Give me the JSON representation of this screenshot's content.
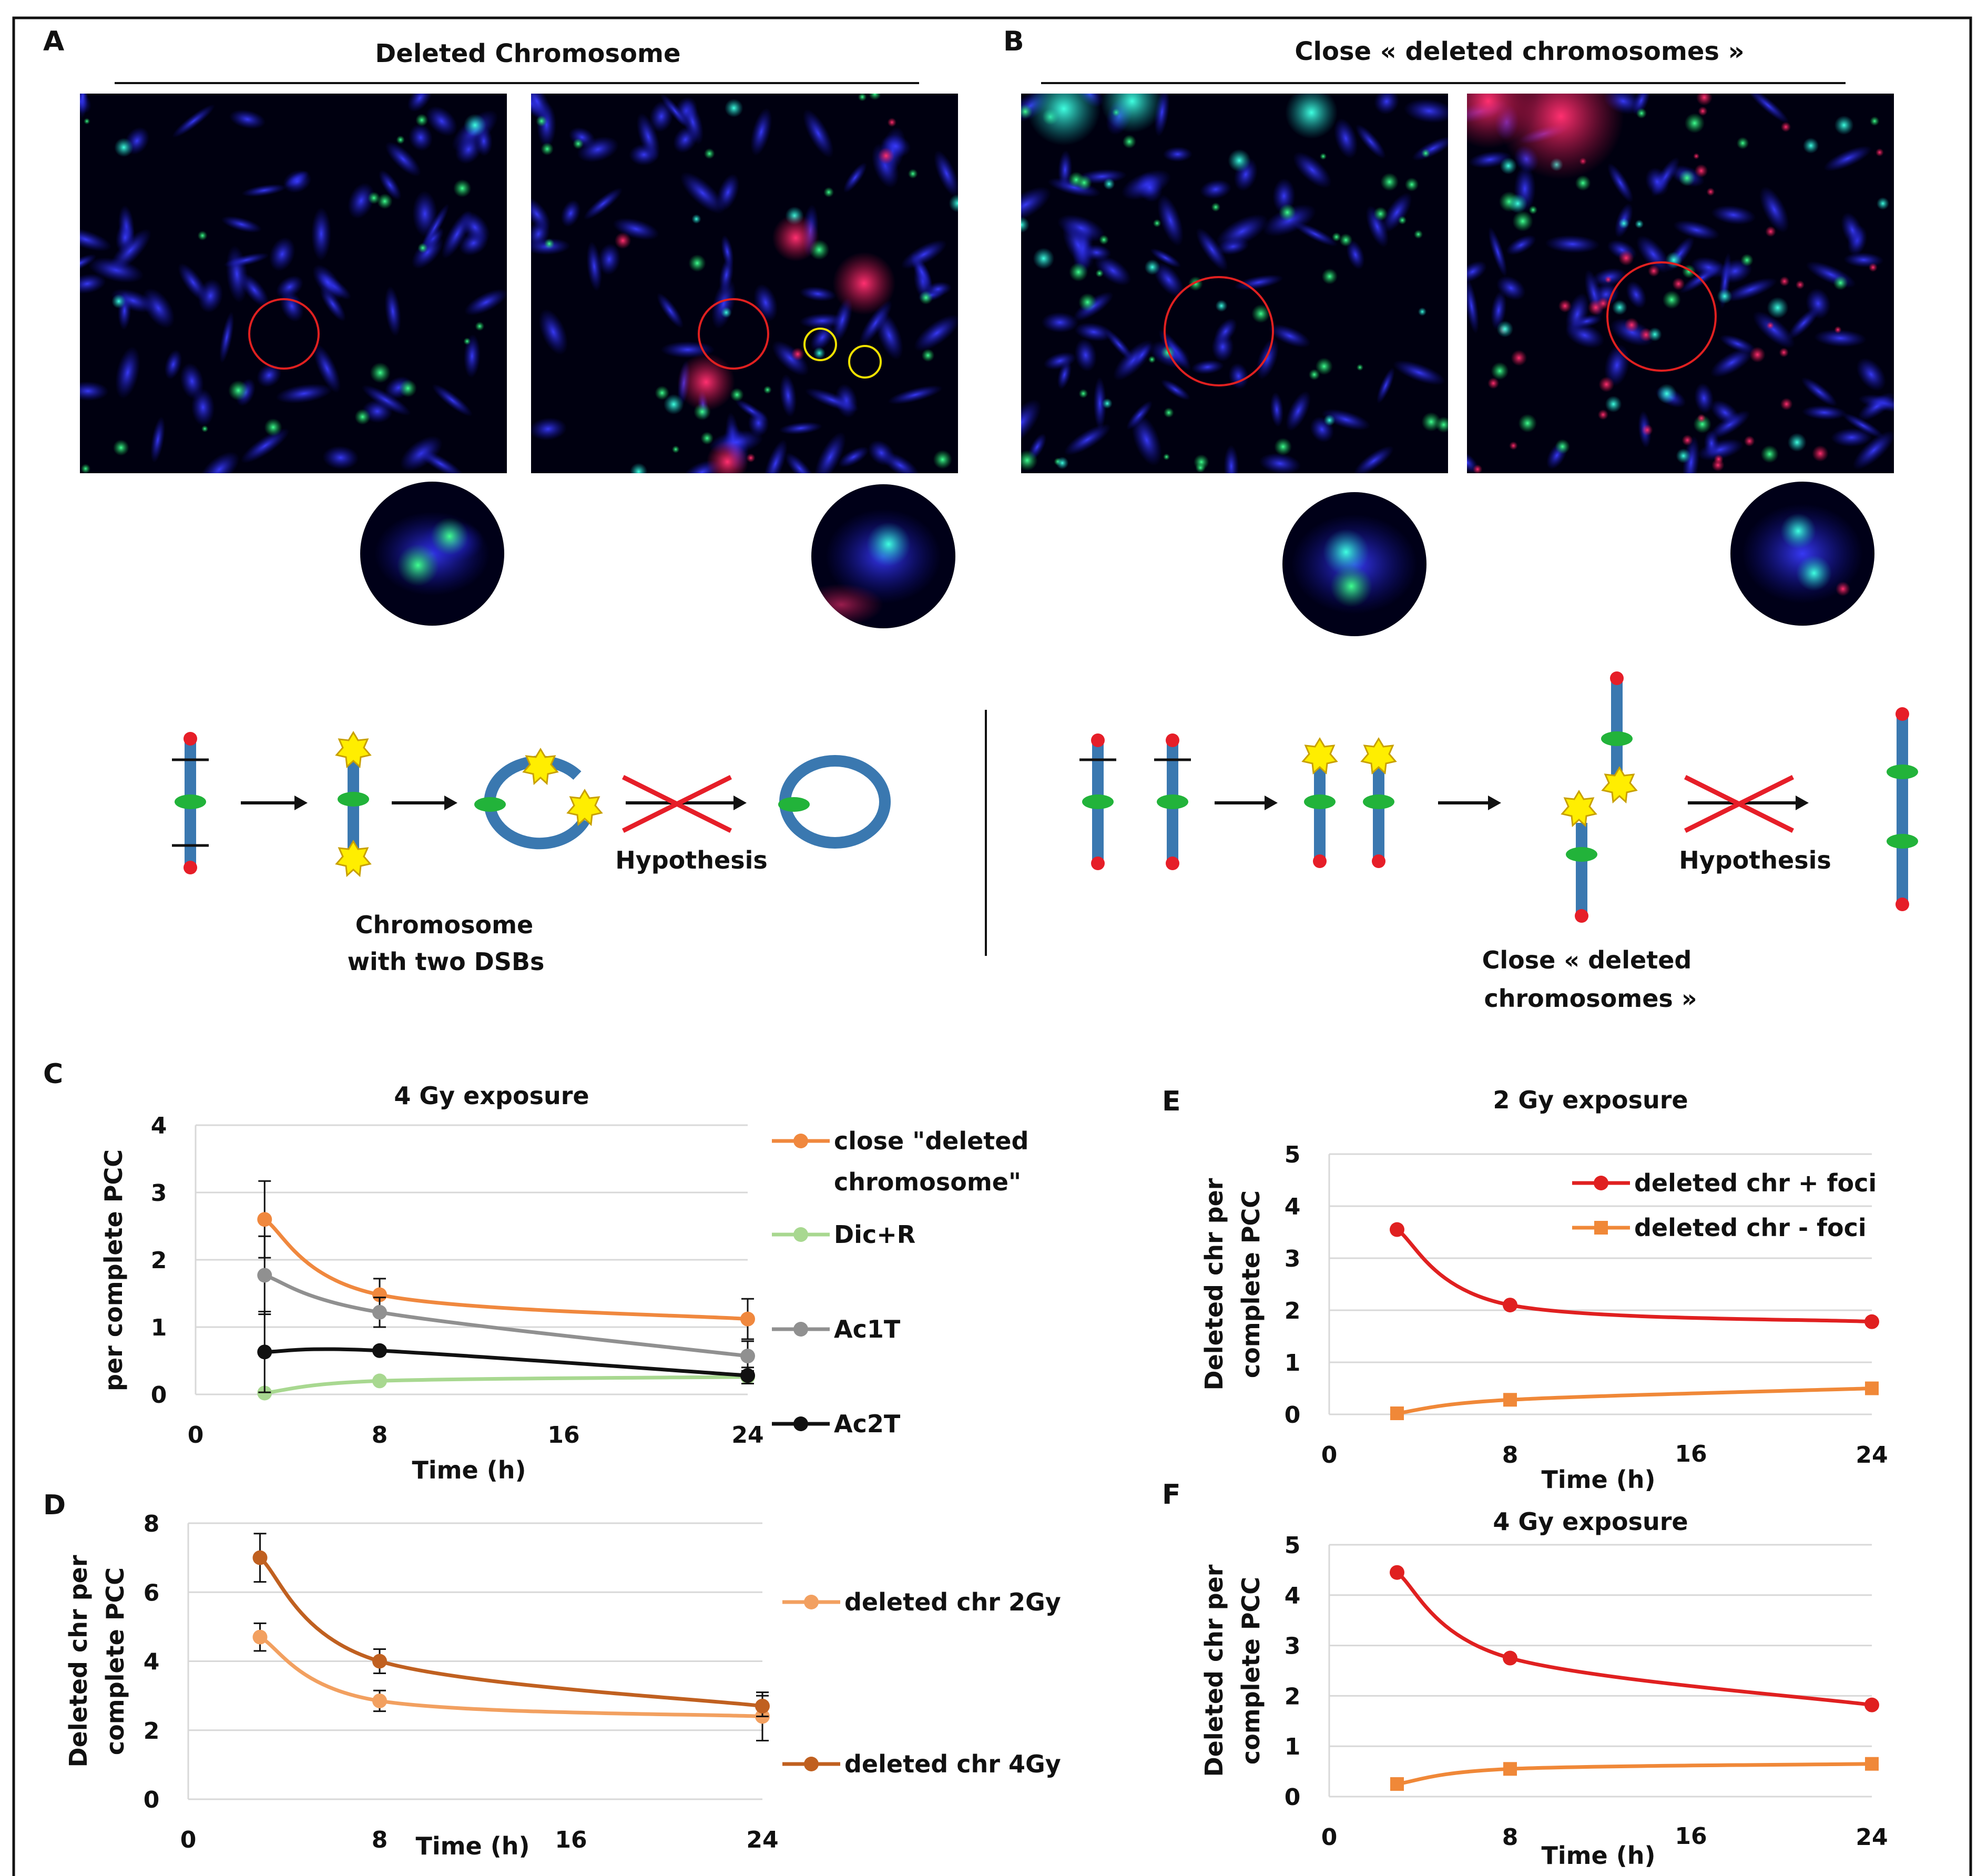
{
  "panels": {
    "A": {
      "letter": "A",
      "title": "Deleted Chromosome",
      "diagram_caption_line1": "Chromosome",
      "diagram_caption_line2": "with two DSBs",
      "hypothesis": "Hypothesis"
    },
    "B": {
      "letter": "B",
      "title": "Close « deleted chromosomes »",
      "diagram_caption_line1": "Close « deleted",
      "diagram_caption_line2": "chromosomes »",
      "hypothesis": "Hypothesis"
    },
    "C": {
      "letter": "C"
    },
    "D": {
      "letter": "D"
    },
    "E": {
      "letter": "E"
    },
    "F": {
      "letter": "F"
    }
  },
  "colors": {
    "chromosome": "#3a78b0",
    "centromere": "#22b33a",
    "telomere": "#e61e28",
    "dsb_star": "#ffee00",
    "cross": "#e61e28",
    "orange": "#f0883e",
    "light_orange": "#f2a060",
    "dark_orange": "#c06020",
    "light_green": "#a8d890",
    "gray": "#909090",
    "black": "#111111",
    "red_series": "#e02020",
    "square_orange": "#f08838"
  },
  "chart_data": [
    {
      "id": "C",
      "type": "line",
      "title": "4 Gy exposure",
      "xlabel": "Time (h)",
      "ylabel": "per complete PCC",
      "xlim": [
        0,
        24
      ],
      "ylim": [
        0,
        4
      ],
      "xticks": [
        0,
        8,
        16,
        24
      ],
      "yticks": [
        0,
        1,
        2,
        3,
        4
      ],
      "series": [
        {
          "name": "close \"deleted chromosome\"",
          "label_line1": "close \"deleted",
          "label_line2": "chromosome\"",
          "color": "#f0883e",
          "marker": "circle",
          "x": [
            3,
            8,
            24
          ],
          "y": [
            2.6,
            1.48,
            1.12
          ],
          "err": [
            0.57,
            0.24,
            0.3
          ]
        },
        {
          "name": "Dic+R",
          "color": "#a8d890",
          "marker": "circle",
          "x": [
            3,
            8,
            24
          ],
          "y": [
            0.02,
            0.2,
            0.26
          ],
          "err": [
            0,
            0,
            0
          ]
        },
        {
          "name": "Ac1T",
          "color": "#909090",
          "marker": "circle",
          "x": [
            3,
            8,
            24
          ],
          "y": [
            1.77,
            1.22,
            0.57
          ],
          "err": [
            0.58,
            0.22,
            0.22
          ]
        },
        {
          "name": "Ac2T",
          "color": "#111111",
          "marker": "circle",
          "x": [
            3,
            8,
            24
          ],
          "y": [
            0.63,
            0.65,
            0.28
          ],
          "err": [
            0.6,
            0,
            0.12
          ]
        }
      ]
    },
    {
      "id": "D",
      "type": "line",
      "title": "",
      "xlabel": "Time (h)",
      "ylabel_line1": "Deleted chr per",
      "ylabel_line2": "complete PCC",
      "xlim": [
        0,
        24
      ],
      "ylim": [
        0,
        8
      ],
      "xticks": [
        0,
        8,
        16,
        24
      ],
      "yticks": [
        0,
        2,
        4,
        6,
        8
      ],
      "series": [
        {
          "name": "deleted chr 2Gy",
          "color": "#f2a060",
          "marker": "circle",
          "x": [
            3,
            8,
            24
          ],
          "y": [
            4.7,
            2.85,
            2.4
          ],
          "err": [
            0.4,
            0.3,
            0.7
          ]
        },
        {
          "name": "deleted chr 4Gy",
          "color": "#c06020",
          "marker": "circle",
          "x": [
            3,
            8,
            24
          ],
          "y": [
            7.0,
            4.0,
            2.7
          ],
          "err": [
            0.7,
            0.35,
            0.3
          ]
        }
      ]
    },
    {
      "id": "E",
      "type": "line",
      "title": "2 Gy exposure",
      "xlabel": "Time (h)",
      "ylabel_line1": "Deleted chr per",
      "ylabel_line2": "complete PCC",
      "xlim": [
        0,
        24
      ],
      "ylim": [
        0,
        5
      ],
      "xticks": [
        0,
        8,
        16,
        24
      ],
      "yticks": [
        0,
        1,
        2,
        3,
        4,
        5
      ],
      "series": [
        {
          "name": "deleted chr + foci",
          "color": "#e02020",
          "marker": "circle",
          "x": [
            3,
            8,
            24
          ],
          "y": [
            3.55,
            2.1,
            1.78
          ]
        },
        {
          "name": "deleted chr - foci",
          "color": "#f08838",
          "marker": "square",
          "x": [
            3,
            8,
            24
          ],
          "y": [
            0.02,
            0.28,
            0.5
          ]
        }
      ]
    },
    {
      "id": "F",
      "type": "line",
      "title": "4 Gy exposure",
      "xlabel": "Time (h)",
      "ylabel_line1": "Deleted chr per",
      "ylabel_line2": "complete PCC",
      "xlim": [
        0,
        24
      ],
      "ylim": [
        0,
        5
      ],
      "xticks": [
        0,
        8,
        16,
        24
      ],
      "yticks": [
        0,
        1,
        2,
        3,
        4,
        5
      ],
      "series": [
        {
          "name": "deleted chr + foci",
          "color": "#e02020",
          "marker": "circle",
          "x": [
            3,
            8,
            24
          ],
          "y": [
            4.45,
            2.75,
            1.82
          ]
        },
        {
          "name": "deleted chr - foci",
          "color": "#f08838",
          "marker": "square",
          "x": [
            3,
            8,
            24
          ],
          "y": [
            0.25,
            0.55,
            0.65
          ]
        }
      ]
    }
  ]
}
